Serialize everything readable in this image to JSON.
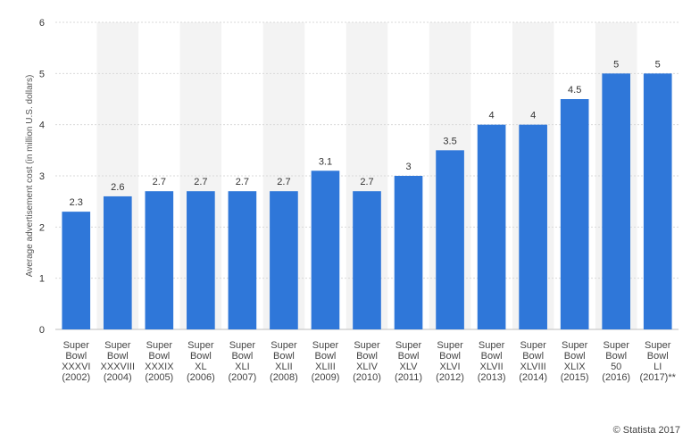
{
  "chart_data": {
    "type": "bar",
    "title": "",
    "xlabel": "",
    "ylabel": "Average advertisement cost (in million U.S. dollars)",
    "ylim": [
      0,
      6
    ],
    "yticks": [
      "0",
      "1",
      "2",
      "3",
      "4",
      "5",
      "6"
    ],
    "grid": true,
    "bar_color": "#2f77d9",
    "categories": [
      [
        "Super",
        "Bowl",
        "XXXVI",
        "(2002)"
      ],
      [
        "Super",
        "Bowl",
        "XXXVIII",
        "(2004)"
      ],
      [
        "Super",
        "Bowl",
        "XXXIX",
        "(2005)"
      ],
      [
        "Super",
        "Bowl",
        "XL",
        "(2006)"
      ],
      [
        "Super",
        "Bowl",
        "XLI",
        "(2007)"
      ],
      [
        "Super",
        "Bowl",
        "XLII",
        "(2008)"
      ],
      [
        "Super",
        "Bowl",
        "XLIII",
        "(2009)"
      ],
      [
        "Super",
        "Bowl",
        "XLIV",
        "(2010)"
      ],
      [
        "Super",
        "Bowl",
        "XLV",
        "(2011)"
      ],
      [
        "Super",
        "Bowl",
        "XLVI",
        "(2012)"
      ],
      [
        "Super",
        "Bowl",
        "XLVII",
        "(2013)"
      ],
      [
        "Super",
        "Bowl",
        "XLVIII",
        "(2014)"
      ],
      [
        "Super",
        "Bowl",
        "XLIX",
        "(2015)"
      ],
      [
        "Super",
        "Bowl",
        "50",
        "(2016)"
      ],
      [
        "Super",
        "Bowl",
        "LI",
        "(2017)**"
      ]
    ],
    "values": [
      2.3,
      2.6,
      2.7,
      2.7,
      2.7,
      2.7,
      3.1,
      2.7,
      3,
      3.5,
      4,
      4,
      4.5,
      5,
      5
    ],
    "data_labels": [
      "2.3",
      "2.6",
      "2.7",
      "2.7",
      "2.7",
      "2.7",
      "3.1",
      "2.7",
      "3",
      "3.5",
      "4",
      "4",
      "4.5",
      "5",
      "5"
    ]
  },
  "footer": {
    "credit": "© Statista 2017"
  }
}
